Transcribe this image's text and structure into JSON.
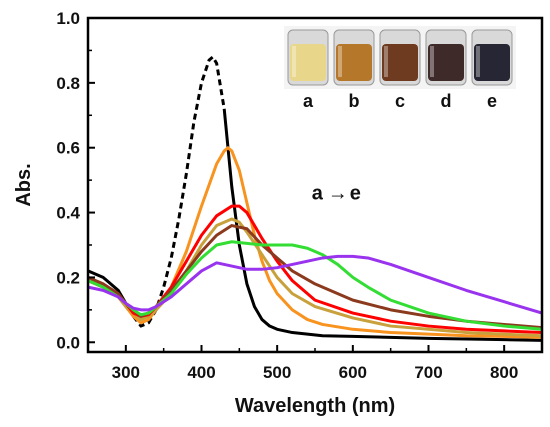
{
  "chart_data": {
    "type": "line",
    "xlabel": "Wavelength (nm)",
    "ylabel": "Abs.",
    "xlim": [
      250,
      850
    ],
    "ylim": [
      -0.03,
      1.0
    ],
    "x_ticks": [
      300,
      400,
      500,
      600,
      700,
      800
    ],
    "x_tick_labels": [
      "300",
      "400",
      "500",
      "600",
      "700",
      "800"
    ],
    "y_ticks": [
      0.0,
      0.2,
      0.4,
      0.6,
      0.8,
      1.0
    ],
    "y_tick_labels": [
      "0.0",
      "0.2",
      "0.4",
      "0.6",
      "0.8",
      "1.0"
    ],
    "grid": false,
    "annotation": {
      "from": "a",
      "arrow": "→",
      "to": "e",
      "x": 580,
      "y": 0.44
    },
    "inset": {
      "labels": [
        "a",
        "b",
        "c",
        "d",
        "e"
      ],
      "vial_colors": [
        "#e8d68a",
        "#b5772a",
        "#6e3a20",
        "#3f2a2a",
        "#262634"
      ]
    },
    "series": [
      {
        "color": "#000000",
        "dashed_range": [
          310,
          430
        ],
        "x": [
          250,
          270,
          290,
          300,
          310,
          320,
          330,
          340,
          350,
          360,
          370,
          380,
          390,
          400,
          410,
          415,
          420,
          430,
          440,
          450,
          460,
          470,
          480,
          490,
          500,
          520,
          540,
          560,
          600,
          650,
          700,
          750,
          800,
          850
        ],
        "y": [
          0.22,
          0.2,
          0.16,
          0.12,
          0.08,
          0.05,
          0.06,
          0.1,
          0.17,
          0.26,
          0.38,
          0.52,
          0.68,
          0.8,
          0.87,
          0.88,
          0.86,
          0.72,
          0.48,
          0.3,
          0.18,
          0.11,
          0.07,
          0.05,
          0.04,
          0.03,
          0.025,
          0.02,
          0.018,
          0.015,
          0.012,
          0.01,
          0.008,
          0.006
        ]
      },
      {
        "color": "#f7931e",
        "x": [
          250,
          270,
          290,
          300,
          310,
          320,
          330,
          340,
          360,
          380,
          400,
          420,
          430,
          435,
          440,
          450,
          460,
          470,
          480,
          490,
          500,
          520,
          540,
          560,
          600,
          650,
          700,
          750,
          800,
          850
        ],
        "y": [
          0.2,
          0.18,
          0.14,
          0.11,
          0.08,
          0.06,
          0.07,
          0.1,
          0.17,
          0.28,
          0.42,
          0.55,
          0.59,
          0.6,
          0.59,
          0.53,
          0.43,
          0.33,
          0.25,
          0.19,
          0.15,
          0.1,
          0.07,
          0.055,
          0.04,
          0.03,
          0.025,
          0.02,
          0.018,
          0.015
        ]
      },
      {
        "color": "#c8a13c",
        "x": [
          250,
          270,
          290,
          300,
          310,
          320,
          330,
          340,
          360,
          380,
          400,
          420,
          440,
          450,
          460,
          480,
          500,
          520,
          550,
          600,
          650,
          700,
          750,
          800,
          850
        ],
        "y": [
          0.19,
          0.17,
          0.14,
          0.11,
          0.09,
          0.07,
          0.08,
          0.1,
          0.15,
          0.22,
          0.3,
          0.36,
          0.38,
          0.37,
          0.34,
          0.27,
          0.2,
          0.15,
          0.11,
          0.075,
          0.05,
          0.04,
          0.03,
          0.025,
          0.02
        ]
      },
      {
        "color": "#ff0000",
        "x": [
          250,
          270,
          290,
          300,
          310,
          320,
          330,
          340,
          360,
          380,
          400,
          420,
          440,
          450,
          460,
          470,
          480,
          500,
          520,
          550,
          600,
          650,
          700,
          750,
          800,
          850
        ],
        "y": [
          0.19,
          0.17,
          0.14,
          0.12,
          0.09,
          0.08,
          0.085,
          0.11,
          0.17,
          0.25,
          0.33,
          0.39,
          0.42,
          0.42,
          0.4,
          0.36,
          0.32,
          0.25,
          0.19,
          0.13,
          0.09,
          0.065,
          0.05,
          0.04,
          0.035,
          0.03
        ]
      },
      {
        "color": "#8b3a1e",
        "x": [
          250,
          270,
          290,
          300,
          310,
          320,
          330,
          340,
          360,
          380,
          400,
          420,
          440,
          460,
          480,
          500,
          520,
          550,
          600,
          650,
          700,
          750,
          800,
          850
        ],
        "y": [
          0.2,
          0.18,
          0.15,
          0.12,
          0.1,
          0.08,
          0.09,
          0.11,
          0.16,
          0.22,
          0.28,
          0.33,
          0.36,
          0.35,
          0.3,
          0.26,
          0.22,
          0.18,
          0.13,
          0.1,
          0.08,
          0.065,
          0.055,
          0.045
        ]
      },
      {
        "color": "#33dd33",
        "x": [
          250,
          270,
          290,
          300,
          310,
          320,
          330,
          340,
          360,
          380,
          400,
          420,
          440,
          460,
          480,
          500,
          520,
          540,
          560,
          580,
          600,
          620,
          650,
          700,
          750,
          800,
          850
        ],
        "y": [
          0.19,
          0.17,
          0.14,
          0.12,
          0.1,
          0.085,
          0.09,
          0.11,
          0.15,
          0.21,
          0.26,
          0.3,
          0.31,
          0.305,
          0.3,
          0.3,
          0.3,
          0.29,
          0.27,
          0.24,
          0.2,
          0.17,
          0.13,
          0.09,
          0.065,
          0.05,
          0.04
        ]
      },
      {
        "color": "#9933ee",
        "x": [
          250,
          270,
          290,
          300,
          310,
          320,
          330,
          340,
          360,
          380,
          400,
          420,
          440,
          460,
          480,
          500,
          520,
          540,
          560,
          580,
          600,
          620,
          650,
          700,
          750,
          800,
          850
        ],
        "y": [
          0.17,
          0.16,
          0.14,
          0.12,
          0.105,
          0.1,
          0.1,
          0.11,
          0.14,
          0.18,
          0.22,
          0.245,
          0.235,
          0.225,
          0.225,
          0.23,
          0.24,
          0.25,
          0.26,
          0.265,
          0.265,
          0.26,
          0.24,
          0.2,
          0.16,
          0.125,
          0.09
        ]
      }
    ]
  }
}
